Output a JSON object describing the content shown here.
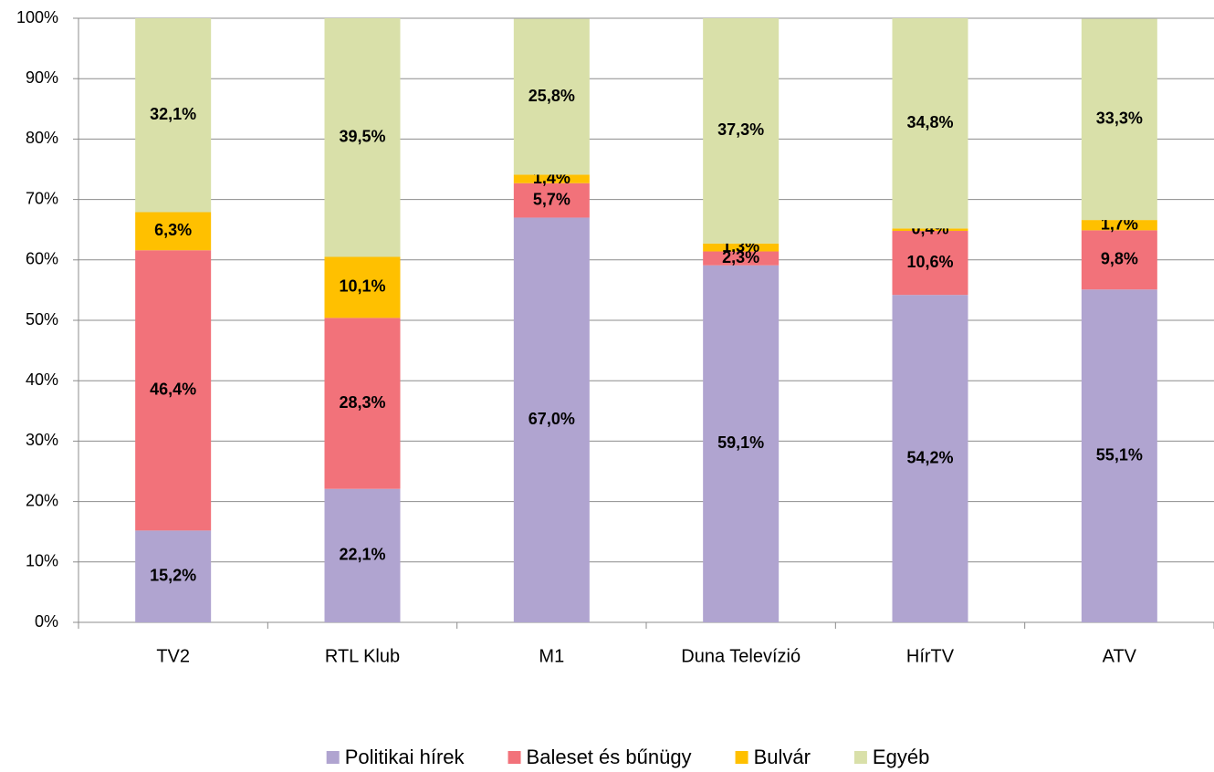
{
  "chart_data": {
    "type": "stacked_bar",
    "categories": [
      "TV2",
      "RTL Klub",
      "M1",
      "Duna Televízió",
      "HírTV",
      "ATV"
    ],
    "series": [
      {
        "name": "Politikai hírek",
        "color": "#b0a4d0",
        "values": [
          15.2,
          22.1,
          67.0,
          59.1,
          54.2,
          55.1
        ],
        "value_labels": [
          "15,2%",
          "22,1%",
          "67,0%",
          "59,1%",
          "54,2%",
          "55,1%"
        ]
      },
      {
        "name": "Baleset és bűnügy",
        "color": "#f2727a",
        "values": [
          46.4,
          28.3,
          5.7,
          2.3,
          10.6,
          9.8
        ],
        "value_labels": [
          "46,4%",
          "28,3%",
          "5,7%",
          "2,3%",
          "10,6%",
          "9,8%"
        ]
      },
      {
        "name": "Bulvár",
        "color": "#ffc000",
        "values": [
          6.3,
          10.1,
          1.4,
          1.3,
          0.4,
          1.7
        ],
        "value_labels": [
          "6,3%",
          "10,1%",
          "1,4%",
          "1,3%",
          "0,4%",
          "1,7%"
        ]
      },
      {
        "name": "Egyéb",
        "color": "#d9e0a9",
        "values": [
          32.1,
          39.5,
          25.8,
          37.3,
          34.8,
          33.3
        ],
        "value_labels": [
          "32,1%",
          "39,5%",
          "25,8%",
          "37,3%",
          "34,8%",
          "33,3%"
        ]
      }
    ],
    "ylim": [
      0,
      100
    ],
    "yticks": [
      {
        "value": 0,
        "label": "0%"
      },
      {
        "value": 10,
        "label": "10%"
      },
      {
        "value": 20,
        "label": "20%"
      },
      {
        "value": 30,
        "label": "30%"
      },
      {
        "value": 40,
        "label": "40%"
      },
      {
        "value": 50,
        "label": "50%"
      },
      {
        "value": 60,
        "label": "60%"
      },
      {
        "value": 70,
        "label": "70%"
      },
      {
        "value": 80,
        "label": "80%"
      },
      {
        "value": 90,
        "label": "90%"
      },
      {
        "value": 100,
        "label": "100%"
      }
    ],
    "grid": true,
    "legend": "bottom"
  }
}
